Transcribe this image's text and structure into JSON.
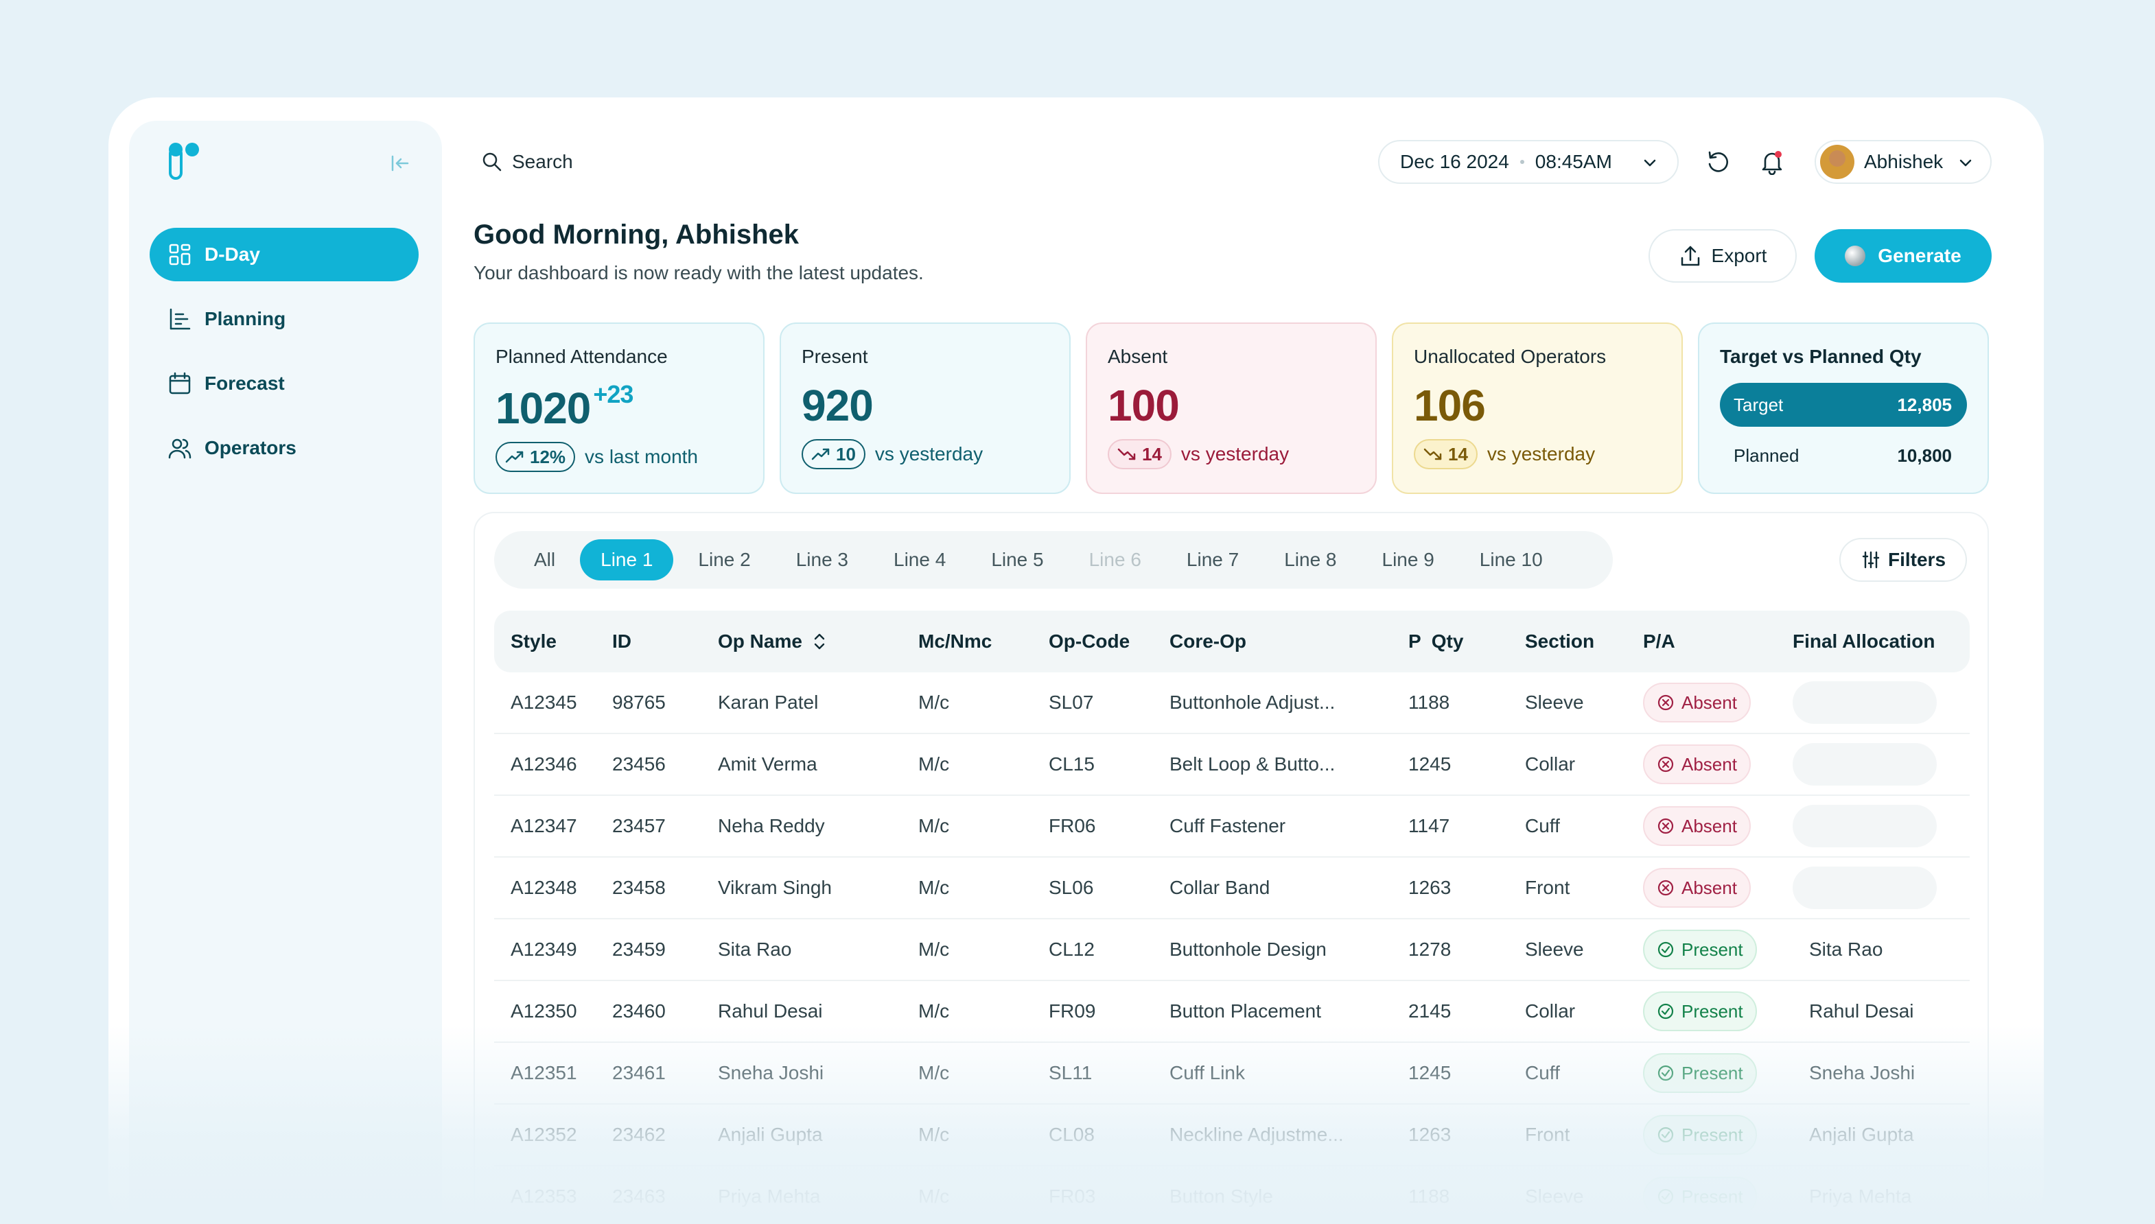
{
  "sidebar": {
    "items": [
      {
        "label": "D-Day",
        "icon": "dashboard-grid-icon"
      },
      {
        "label": "Planning",
        "icon": "planning-list-icon"
      },
      {
        "label": "Forecast",
        "icon": "calendar-icon"
      },
      {
        "label": "Operators",
        "icon": "users-icon"
      }
    ]
  },
  "topbar": {
    "search_label": "Search",
    "date": "Dec 16 2024",
    "time": "08:45AM",
    "user_name": "Abhishek"
  },
  "greeting": {
    "title": "Good Morning, Abhishek",
    "subtitle": "Your dashboard is now ready with the latest updates.",
    "export_label": "Export",
    "generate_label": "Generate"
  },
  "cards": {
    "planned": {
      "title": "Planned Attendance",
      "value": "1020",
      "delta": "+23",
      "chip": "12%",
      "compare": "vs last month"
    },
    "present": {
      "title": "Present",
      "value": "920",
      "chip": "10",
      "compare": "vs yesterday"
    },
    "absent": {
      "title": "Absent",
      "value": "100",
      "chip": "14",
      "compare": "vs yesterday"
    },
    "unallocated": {
      "title": "Unallocated Operators",
      "value": "106",
      "chip": "14",
      "compare": "vs yesterday"
    },
    "target_vs_planned": {
      "title": "Target vs Planned Qty",
      "target_label": "Target",
      "target_value": "12,805",
      "planned_label": "Planned",
      "planned_value": "10,800"
    }
  },
  "tabs": [
    "All",
    "Line 1",
    "Line 2",
    "Line 3",
    "Line 4",
    "Line 5",
    "Line 6",
    "Line 7",
    "Line 8",
    "Line 9",
    "Line 10"
  ],
  "active_tab": "Line 1",
  "disabled_tab": "Line 6",
  "filters_label": "Filters",
  "table": {
    "headers": {
      "style": "Style",
      "id": "ID",
      "op_name": "Op Name",
      "mc": "Mc/Nmc",
      "op_code": "Op-Code",
      "core_op": "Core-Op",
      "p_qty": "P  Qty",
      "section": "Section",
      "pa": "P/A",
      "final_allocation": "Final Allocation"
    },
    "rows": [
      {
        "style": "A12345",
        "id": "98765",
        "op_name": "Karan Patel",
        "mc": "M/c",
        "op_code": "SL07",
        "core_op": "Buttonhole Adjust...",
        "p_qty": "1188",
        "section": "Sleeve",
        "pa": "Absent",
        "final_allocation": ""
      },
      {
        "style": "A12346",
        "id": "23456",
        "op_name": "Amit Verma",
        "mc": "M/c",
        "op_code": "CL15",
        "core_op": "Belt Loop & Butto...",
        "p_qty": "1245",
        "section": "Collar",
        "pa": "Absent",
        "final_allocation": ""
      },
      {
        "style": "A12347",
        "id": "23457",
        "op_name": "Neha Reddy",
        "mc": "M/c",
        "op_code": "FR06",
        "core_op": "Cuff Fastener",
        "p_qty": "1147",
        "section": "Cuff",
        "pa": "Absent",
        "final_allocation": ""
      },
      {
        "style": "A12348",
        "id": "23458",
        "op_name": "Vikram Singh",
        "mc": "M/c",
        "op_code": "SL06",
        "core_op": "Collar Band",
        "p_qty": "1263",
        "section": "Front",
        "pa": "Absent",
        "final_allocation": ""
      },
      {
        "style": "A12349",
        "id": "23459",
        "op_name": "Sita Rao",
        "mc": "M/c",
        "op_code": "CL12",
        "core_op": "Buttonhole Design",
        "p_qty": "1278",
        "section": "Sleeve",
        "pa": "Present",
        "final_allocation": "Sita Rao"
      },
      {
        "style": "A12350",
        "id": "23460",
        "op_name": "Rahul Desai",
        "mc": "M/c",
        "op_code": "FR09",
        "core_op": "Button Placement",
        "p_qty": "2145",
        "section": "Collar",
        "pa": "Present",
        "final_allocation": "Rahul Desai"
      },
      {
        "style": "A12351",
        "id": "23461",
        "op_name": "Sneha Joshi",
        "mc": "M/c",
        "op_code": "SL11",
        "core_op": "Cuff Link",
        "p_qty": "1245",
        "section": "Cuff",
        "pa": "Present",
        "final_allocation": "Sneha Joshi"
      },
      {
        "style": "A12352",
        "id": "23462",
        "op_name": "Anjali Gupta",
        "mc": "M/c",
        "op_code": "CL08",
        "core_op": "Neckline Adjustme...",
        "p_qty": "1263",
        "section": "Front",
        "pa": "Present",
        "final_allocation": "Anjali Gupta"
      },
      {
        "style": "A12353",
        "id": "23463",
        "op_name": "Priya Mehta",
        "mc": "M/c",
        "op_code": "FR03",
        "core_op": "Button Style",
        "p_qty": "1188",
        "section": "Sleeve",
        "pa": "Present",
        "final_allocation": "Priya Mehta"
      }
    ]
  },
  "colors": {
    "accent": "#11b3d6",
    "absent": "#a02044",
    "present": "#13824a",
    "unallocated": "#7a5a08"
  }
}
